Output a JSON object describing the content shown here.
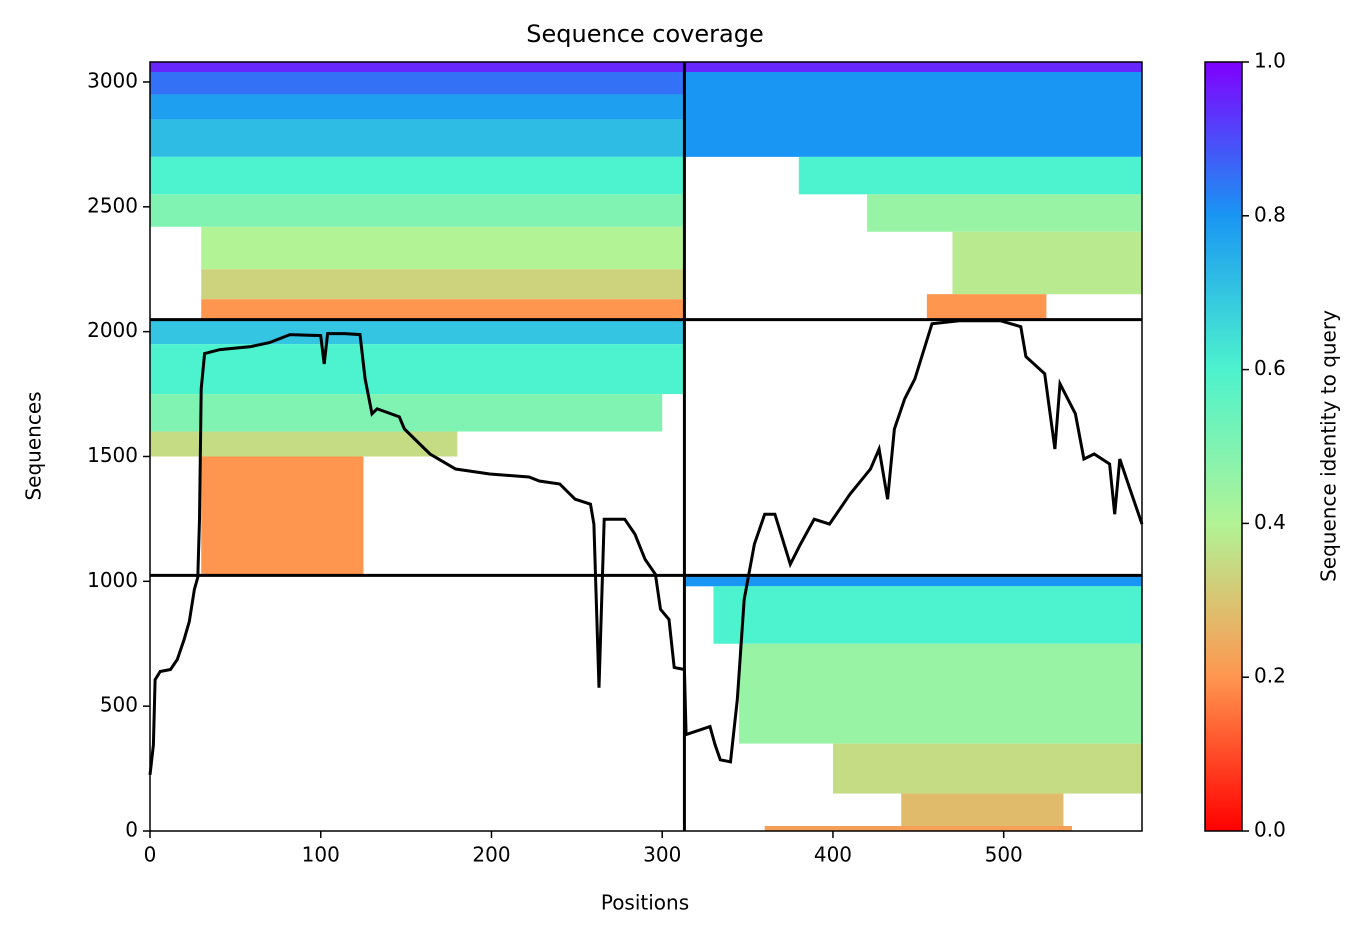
{
  "chart_data": {
    "type": "coverage",
    "title": "Sequence coverage",
    "xlabel": "Positions",
    "ylabel": "Sequences",
    "xlim": [
      0,
      581
    ],
    "ylim": [
      0,
      3080
    ],
    "xticks": [
      0,
      100,
      200,
      300,
      400,
      500
    ],
    "yticks": [
      0,
      500,
      1000,
      1500,
      2000,
      2500,
      3000
    ],
    "block_bounds_x": [
      313
    ],
    "block_bounds_y": [
      1024,
      2048
    ],
    "colorbar": {
      "label": "Sequence identity to query",
      "lim": [
        0,
        1
      ],
      "ticks": [
        {
          "value": 0,
          "label": "0.0"
        },
        {
          "value": 0.2,
          "label": "0.2"
        },
        {
          "value": 0.4,
          "label": "0.4"
        },
        {
          "value": 0.6,
          "label": "0.6"
        },
        {
          "value": 0.8,
          "label": "0.8"
        },
        {
          "value": 1,
          "label": "1.0"
        }
      ],
      "colormap": [
        "#ff0000",
        "#ff964f",
        "#b2f396",
        "#4df3ce",
        "#1996f3",
        "#8000ff"
      ]
    },
    "blocks": [
      {
        "x": [
          0,
          313
        ],
        "y": [
          3040,
          3080
        ],
        "identity": 0.95
      },
      {
        "x": [
          0,
          313
        ],
        "y": [
          2950,
          3040
        ],
        "identity": 0.85
      },
      {
        "x": [
          0,
          313
        ],
        "y": [
          2850,
          2950
        ],
        "identity": 0.78
      },
      {
        "x": [
          0,
          313
        ],
        "y": [
          2700,
          2850
        ],
        "identity": 0.72
      },
      {
        "x": [
          0,
          313
        ],
        "y": [
          2550,
          2700
        ],
        "identity": 0.6
      },
      {
        "x": [
          0,
          313
        ],
        "y": [
          2420,
          2550
        ],
        "identity": 0.5
      },
      {
        "x": [
          30,
          313
        ],
        "y": [
          2250,
          2420
        ],
        "identity": 0.4
      },
      {
        "x": [
          30,
          313
        ],
        "y": [
          2130,
          2250
        ],
        "identity": 0.33
      },
      {
        "x": [
          30,
          313
        ],
        "y": [
          2048,
          2130
        ],
        "identity": 0.2
      },
      {
        "x": [
          313,
          581
        ],
        "y": [
          3040,
          3080
        ],
        "identity": 0.95
      },
      {
        "x": [
          313,
          581
        ],
        "y": [
          2700,
          3040
        ],
        "identity": 0.8
      },
      {
        "x": [
          380,
          581
        ],
        "y": [
          2550,
          2700
        ],
        "identity": 0.6
      },
      {
        "x": [
          420,
          581
        ],
        "y": [
          2400,
          2550
        ],
        "identity": 0.45
      },
      {
        "x": [
          470,
          581
        ],
        "y": [
          2150,
          2400
        ],
        "identity": 0.38
      },
      {
        "x": [
          455,
          525
        ],
        "y": [
          2048,
          2150
        ],
        "identity": 0.2
      },
      {
        "x": [
          0,
          313
        ],
        "y": [
          1950,
          2048
        ],
        "identity": 0.7
      },
      {
        "x": [
          0,
          313
        ],
        "y": [
          1750,
          1950
        ],
        "identity": 0.6
      },
      {
        "x": [
          0,
          300
        ],
        "y": [
          1600,
          1750
        ],
        "identity": 0.5
      },
      {
        "x": [
          0,
          180
        ],
        "y": [
          1500,
          1600
        ],
        "identity": 0.35
      },
      {
        "x": [
          30,
          125
        ],
        "y": [
          1024,
          1500
        ],
        "identity": 0.2
      },
      {
        "x": [
          313,
          581
        ],
        "y": [
          980,
          1024
        ],
        "identity": 0.8
      },
      {
        "x": [
          330,
          581
        ],
        "y": [
          750,
          980
        ],
        "identity": 0.6
      },
      {
        "x": [
          345,
          581
        ],
        "y": [
          350,
          750
        ],
        "identity": 0.45
      },
      {
        "x": [
          400,
          581
        ],
        "y": [
          150,
          350
        ],
        "identity": 0.35
      },
      {
        "x": [
          440,
          535
        ],
        "y": [
          20,
          150
        ],
        "identity": 0.28
      },
      {
        "x": [
          360,
          540
        ],
        "y": [
          0,
          20
        ],
        "identity": 0.22
      }
    ],
    "coverage": {
      "color": "#000000",
      "x": [
        0,
        2,
        3,
        6,
        12,
        16,
        20,
        23,
        26,
        28,
        29,
        30,
        32,
        41,
        59,
        70,
        82,
        100,
        102,
        104,
        114,
        123,
        126,
        130,
        133,
        146,
        149,
        164,
        179,
        199,
        222,
        228,
        240,
        249,
        258,
        260,
        263,
        266,
        278,
        284,
        290,
        296,
        299,
        304,
        307,
        313,
        314,
        328,
        331,
        334,
        340,
        344,
        348,
        354,
        360,
        366,
        375,
        381,
        389,
        398,
        410,
        422,
        427,
        432,
        436,
        442,
        448,
        458,
        474,
        498,
        510,
        513,
        524,
        530,
        533,
        542,
        547,
        553,
        562,
        565,
        568,
        574,
        581
      ],
      "values": [
        225,
        345,
        606,
        639,
        647,
        687,
        767,
        839,
        968,
        1016,
        1249,
        1771,
        1912,
        1928,
        1940,
        1956,
        1988,
        1984,
        1871,
        1992,
        1992,
        1988,
        1811,
        1671,
        1691,
        1659,
        1610,
        1510,
        1450,
        1430,
        1418,
        1402,
        1390,
        1329,
        1309,
        1229,
        574,
        1249,
        1249,
        1189,
        1088,
        1028,
        888,
        847,
        655,
        647,
        386,
        418,
        345,
        285,
        277,
        526,
        928,
        1149,
        1269,
        1269,
        1068,
        1149,
        1249,
        1229,
        1349,
        1450,
        1530,
        1329,
        1610,
        1731,
        1811,
        2032,
        2044,
        2044,
        2020,
        1900,
        1831,
        1530,
        1791,
        1671,
        1490,
        1510,
        1470,
        1269,
        1490,
        1369,
        1229
      ]
    }
  }
}
